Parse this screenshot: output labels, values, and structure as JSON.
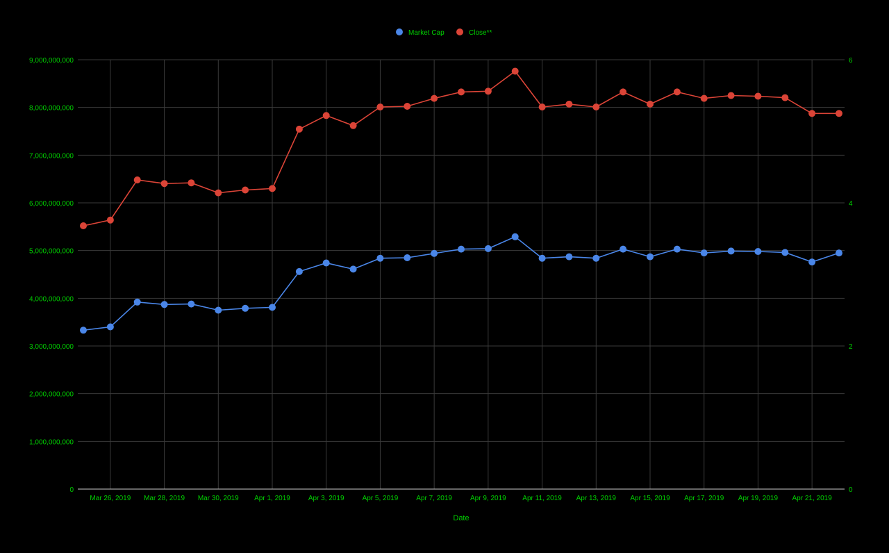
{
  "chart_data": {
    "type": "line",
    "title": "",
    "xlabel": "Date",
    "ylabel_left": "",
    "ylabel_right": "",
    "x": [
      "2019-03-25",
      "2019-03-26",
      "2019-03-27",
      "2019-03-28",
      "2019-03-29",
      "2019-03-30",
      "2019-03-31",
      "2019-04-01",
      "2019-04-02",
      "2019-04-03",
      "2019-04-04",
      "2019-04-05",
      "2019-04-06",
      "2019-04-07",
      "2019-04-08",
      "2019-04-09",
      "2019-04-10",
      "2019-04-11",
      "2019-04-12",
      "2019-04-13",
      "2019-04-14",
      "2019-04-15",
      "2019-04-16",
      "2019-04-17",
      "2019-04-18",
      "2019-04-19",
      "2019-04-20",
      "2019-04-21",
      "2019-04-22"
    ],
    "x_tick_labels": [
      "Mar 26, 2019",
      "Mar 28, 2019",
      "Mar 30, 2019",
      "Apr 1, 2019",
      "Apr 3, 2019",
      "Apr 5, 2019",
      "Apr 7, 2019",
      "Apr 9, 2019",
      "Apr 11, 2019",
      "Apr 13, 2019",
      "Apr 15, 2019",
      "Apr 17, 2019",
      "Apr 19, 2019",
      "Apr 21, 2019"
    ],
    "y_left_ticks": [
      "0",
      "1,000,000,000",
      "2,000,000,000",
      "3,000,000,000",
      "4,000,000,000",
      "5,000,000,000",
      "6,000,000,000",
      "7,000,000,000",
      "8,000,000,000",
      "9,000,000,000"
    ],
    "y_right_ticks": [
      "0",
      "2",
      "4",
      "6"
    ],
    "ylim_left": [
      0,
      9000000000
    ],
    "ylim_right": [
      0,
      6
    ],
    "grid": true,
    "legend_position": "top-center",
    "series": [
      {
        "name": "Market Cap",
        "axis": "left",
        "color": "#4a86e8",
        "values": [
          3330000000,
          3400000000,
          3920000000,
          3870000000,
          3880000000,
          3750000000,
          3790000000,
          3810000000,
          4560000000,
          4740000000,
          4610000000,
          4840000000,
          4850000000,
          4940000000,
          5030000000,
          5040000000,
          5290000000,
          4840000000,
          4870000000,
          4840000000,
          5030000000,
          4870000000,
          5030000000,
          4950000000,
          4990000000,
          4980000000,
          4960000000,
          4760000000,
          4950000000
        ]
      },
      {
        "name": "Close**",
        "axis": "right",
        "color": "#db4437",
        "values": [
          3.68,
          3.76,
          4.32,
          4.27,
          4.28,
          4.14,
          4.18,
          4.2,
          5.03,
          5.22,
          5.08,
          5.34,
          5.35,
          5.46,
          5.55,
          5.56,
          5.84,
          5.34,
          5.38,
          5.34,
          5.55,
          5.38,
          5.55,
          5.46,
          5.5,
          5.49,
          5.47,
          5.25,
          5.25
        ]
      }
    ]
  },
  "colors": {
    "background": "#000000",
    "text": "#00d000",
    "grid": "#3a3a3a",
    "axis_line": "#cccccc"
  }
}
